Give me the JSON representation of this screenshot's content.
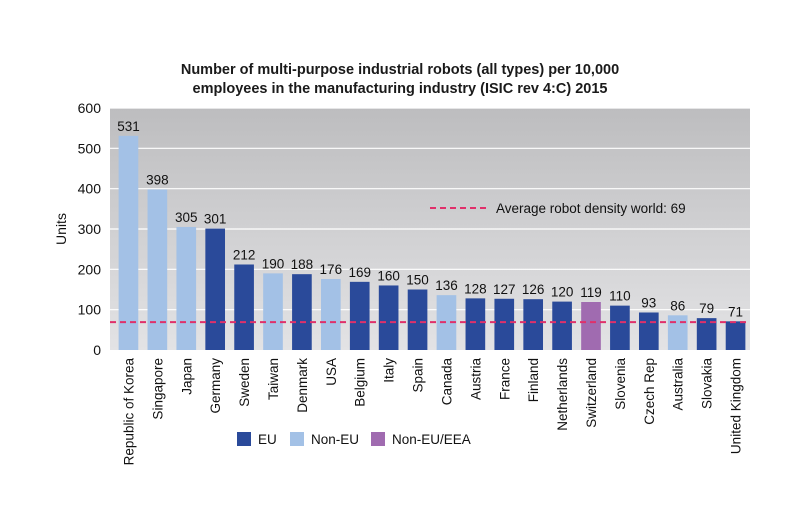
{
  "chart_data": {
    "type": "bar",
    "title_lines": [
      "Number of multi-purpose industrial robots (all types) per 10,000",
      "employees in the manufacturing industry (ISIC rev 4:C) 2015"
    ],
    "ylabel": "Units",
    "ylim": [
      0,
      600
    ],
    "yticks": [
      "0",
      "100",
      "200",
      "300",
      "400",
      "500",
      "600"
    ],
    "grid": true,
    "categories": [
      "Republic of Korea",
      "Singapore",
      "Japan",
      "Germany",
      "Sweden",
      "Taiwan",
      "Denmark",
      "USA",
      "Belgium",
      "Italy",
      "Spain",
      "Canada",
      "Austria",
      "France",
      "Finland",
      "Netherlands",
      "Switzerland",
      "Slovenia",
      "Czech Rep",
      "Australia",
      "Slovakia",
      "United Kingdom"
    ],
    "values": [
      531,
      398,
      305,
      301,
      212,
      190,
      188,
      176,
      169,
      160,
      150,
      136,
      128,
      127,
      126,
      120,
      119,
      110,
      93,
      86,
      79,
      71
    ],
    "groups": [
      "Non-EU",
      "Non-EU",
      "Non-EU",
      "EU",
      "EU",
      "Non-EU",
      "EU",
      "Non-EU",
      "EU",
      "EU",
      "EU",
      "Non-EU",
      "EU",
      "EU",
      "EU",
      "EU",
      "Non-EU/EEA",
      "EU",
      "EU",
      "Non-EU",
      "EU",
      "EU"
    ],
    "legend": [
      {
        "name": "EU",
        "color": "#2a4a9a"
      },
      {
        "name": "Non-EU",
        "color": "#a3c1e6"
      },
      {
        "name": "Non-EU/EEA",
        "color": "#a06bb0"
      }
    ],
    "legend_position": "bottom-left",
    "reference_line": {
      "value": 69,
      "label": "Average robot density world: 69",
      "color": "#e0306a"
    }
  }
}
